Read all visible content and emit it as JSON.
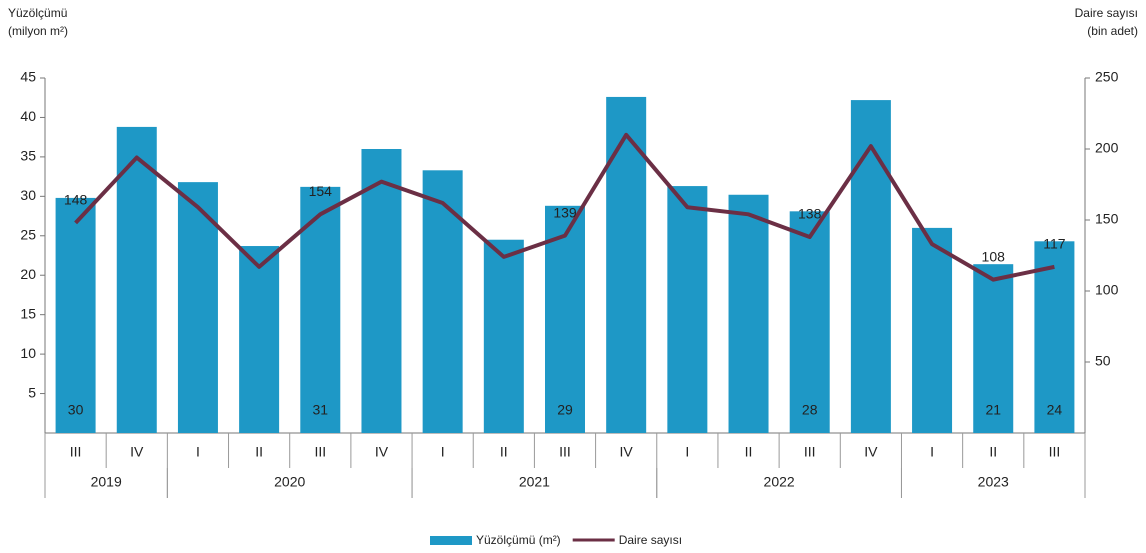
{
  "chart_data": {
    "type": "bar_line",
    "y_axis_title": [
      "Yüzölçümü",
      "(milyon m²)"
    ],
    "y2_axis_title": [
      "Daire sayısı",
      "(bin adet)"
    ],
    "categories": [
      "III",
      "IV",
      "I",
      "II",
      "III",
      "IV",
      "I",
      "II",
      "III",
      "IV",
      "I",
      "II",
      "III",
      "IV",
      "I",
      "II",
      "III"
    ],
    "groups": [
      {
        "label": "2019",
        "span": 2
      },
      {
        "label": "2020",
        "span": 4
      },
      {
        "label": "2021",
        "span": 4
      },
      {
        "label": "2022",
        "span": 4
      },
      {
        "label": "2023",
        "span": 3
      }
    ],
    "series": [
      {
        "name": "Yüzölçümü (m²)",
        "type": "bar",
        "color": "#1e98c6",
        "values": [
          29.8,
          38.8,
          31.8,
          23.7,
          31.2,
          36,
          33.3,
          24.5,
          28.8,
          42.6,
          31.3,
          30.2,
          28.1,
          42.2,
          26,
          21.4,
          24.3
        ],
        "value_labels": [
          "30",
          null,
          null,
          null,
          "31",
          null,
          null,
          null,
          "29",
          null,
          null,
          null,
          "28",
          null,
          null,
          "21",
          "24"
        ]
      },
      {
        "name": "Daire sayısı",
        "type": "line",
        "axis": "y2",
        "color": "#6b2f45",
        "values": [
          148,
          194,
          159,
          117,
          154,
          177,
          162,
          124,
          139,
          210,
          159,
          154,
          138,
          202,
          133,
          108,
          117
        ],
        "value_labels": [
          "148",
          null,
          null,
          null,
          "154",
          null,
          null,
          null,
          "139",
          null,
          null,
          null,
          "138",
          null,
          null,
          "108",
          "117"
        ]
      }
    ],
    "ylim": [
      0,
      45
    ],
    "yticks": [
      5,
      10,
      15,
      20,
      25,
      30,
      35,
      40,
      45
    ],
    "y2lim": [
      0,
      250
    ],
    "y2ticks": [
      50,
      100,
      150,
      200,
      250
    ]
  }
}
